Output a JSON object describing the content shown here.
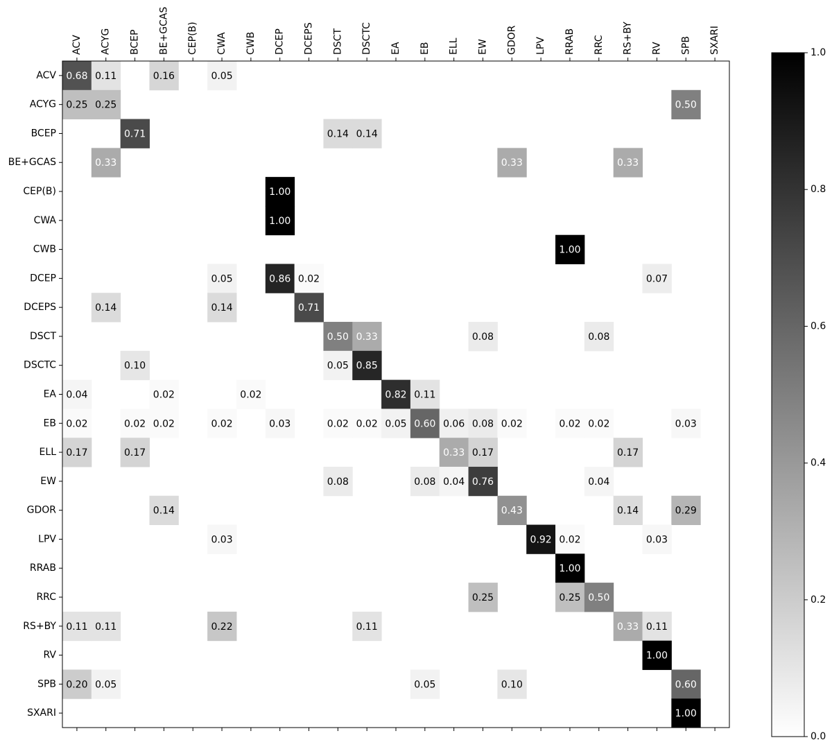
{
  "chart_data": {
    "type": "heatmap",
    "rows": [
      "ACV",
      "ACYG",
      "BCEP",
      "BE+GCAS",
      "CEP(B)",
      "CWA",
      "CWB",
      "DCEP",
      "DCEPS",
      "DSCT",
      "DSCTC",
      "EA",
      "EB",
      "ELL",
      "EW",
      "GDOR",
      "LPV",
      "RRAB",
      "RRC",
      "RS+BY",
      "RV",
      "SPB",
      "SXARI"
    ],
    "columns": [
      "ACV",
      "ACYG",
      "BCEP",
      "BE+GCAS",
      "CEP(B)",
      "CWA",
      "CWB",
      "DCEP",
      "DCEPS",
      "DSCT",
      "DSCTC",
      "EA",
      "EB",
      "ELL",
      "EW",
      "GDOR",
      "LPV",
      "RRAB",
      "RRC",
      "RS+BY",
      "RV",
      "SPB",
      "SXARI"
    ],
    "values": [
      [
        0.68,
        0.11,
        null,
        0.16,
        null,
        0.05,
        null,
        null,
        null,
        null,
        null,
        null,
        null,
        null,
        null,
        null,
        null,
        null,
        null,
        null,
        null,
        null,
        null
      ],
      [
        0.25,
        0.25,
        null,
        null,
        null,
        null,
        null,
        null,
        null,
        null,
        null,
        null,
        null,
        null,
        null,
        null,
        null,
        null,
        null,
        null,
        null,
        0.5,
        null
      ],
      [
        null,
        null,
        0.71,
        null,
        null,
        null,
        null,
        null,
        null,
        0.14,
        0.14,
        null,
        null,
        null,
        null,
        null,
        null,
        null,
        null,
        null,
        null,
        null,
        null
      ],
      [
        null,
        0.33,
        null,
        null,
        null,
        null,
        null,
        null,
        null,
        null,
        null,
        null,
        null,
        null,
        null,
        0.33,
        null,
        null,
        null,
        0.33,
        null,
        null,
        null
      ],
      [
        null,
        null,
        null,
        null,
        null,
        null,
        null,
        1,
        null,
        null,
        null,
        null,
        null,
        null,
        null,
        null,
        null,
        null,
        null,
        null,
        null,
        null,
        null
      ],
      [
        null,
        null,
        null,
        null,
        null,
        null,
        null,
        1,
        null,
        null,
        null,
        null,
        null,
        null,
        null,
        null,
        null,
        null,
        null,
        null,
        null,
        null,
        null
      ],
      [
        null,
        null,
        null,
        null,
        null,
        null,
        null,
        null,
        null,
        null,
        null,
        null,
        null,
        null,
        null,
        null,
        null,
        1,
        null,
        null,
        null,
        null,
        null
      ],
      [
        null,
        null,
        null,
        null,
        null,
        0.05,
        null,
        0.86,
        0.02,
        null,
        null,
        null,
        null,
        null,
        null,
        null,
        null,
        null,
        null,
        null,
        0.07,
        null,
        null
      ],
      [
        null,
        0.14,
        null,
        null,
        null,
        0.14,
        null,
        null,
        0.71,
        null,
        null,
        null,
        null,
        null,
        null,
        null,
        null,
        null,
        null,
        null,
        null,
        null,
        null
      ],
      [
        null,
        null,
        null,
        null,
        null,
        null,
        null,
        null,
        null,
        0.5,
        0.33,
        null,
        null,
        null,
        0.08,
        null,
        null,
        null,
        0.08,
        null,
        null,
        null,
        null
      ],
      [
        null,
        null,
        0.1,
        null,
        null,
        null,
        null,
        null,
        null,
        0.05,
        0.85,
        null,
        null,
        null,
        null,
        null,
        null,
        null,
        null,
        null,
        null,
        null,
        null
      ],
      [
        0.04,
        null,
        null,
        0.02,
        null,
        null,
        0.02,
        null,
        null,
        null,
        null,
        0.82,
        0.11,
        null,
        null,
        null,
        null,
        null,
        null,
        null,
        null,
        null,
        null
      ],
      [
        0.02,
        null,
        0.02,
        0.02,
        null,
        0.02,
        null,
        0.03,
        null,
        0.02,
        0.02,
        0.05,
        0.6,
        0.06,
        0.08,
        0.02,
        null,
        0.02,
        0.02,
        null,
        null,
        0.03,
        null
      ],
      [
        0.17,
        null,
        0.17,
        null,
        null,
        null,
        null,
        null,
        null,
        null,
        null,
        null,
        null,
        0.33,
        0.17,
        null,
        null,
        null,
        null,
        0.17,
        null,
        null,
        null
      ],
      [
        null,
        null,
        null,
        null,
        null,
        null,
        null,
        null,
        null,
        0.08,
        null,
        null,
        0.08,
        0.04,
        0.76,
        null,
        null,
        null,
        0.04,
        null,
        null,
        null,
        null
      ],
      [
        null,
        null,
        null,
        0.14,
        null,
        null,
        null,
        null,
        null,
        null,
        null,
        null,
        null,
        null,
        null,
        0.43,
        null,
        null,
        null,
        0.14,
        null,
        0.29,
        null
      ],
      [
        null,
        null,
        null,
        null,
        null,
        0.03,
        null,
        null,
        null,
        null,
        null,
        null,
        null,
        null,
        null,
        null,
        0.92,
        0.02,
        null,
        null,
        0.03,
        null,
        null
      ],
      [
        null,
        null,
        null,
        null,
        null,
        null,
        null,
        null,
        null,
        null,
        null,
        null,
        null,
        null,
        null,
        null,
        null,
        1,
        null,
        null,
        null,
        null,
        null
      ],
      [
        null,
        null,
        null,
        null,
        null,
        null,
        null,
        null,
        null,
        null,
        null,
        null,
        null,
        null,
        0.25,
        null,
        null,
        0.25,
        0.5,
        null,
        null,
        null,
        null
      ],
      [
        0.11,
        0.11,
        null,
        null,
        null,
        0.22,
        null,
        null,
        null,
        null,
        0.11,
        null,
        null,
        null,
        null,
        null,
        null,
        null,
        null,
        0.33,
        0.11,
        null,
        null
      ],
      [
        null,
        null,
        null,
        null,
        null,
        null,
        null,
        null,
        null,
        null,
        null,
        null,
        null,
        null,
        null,
        null,
        null,
        null,
        null,
        null,
        1,
        null,
        null
      ],
      [
        0.2,
        0.05,
        null,
        null,
        null,
        null,
        null,
        null,
        null,
        null,
        null,
        null,
        0.05,
        null,
        null,
        0.1,
        null,
        null,
        null,
        null,
        null,
        0.6,
        null
      ],
      [
        null,
        null,
        null,
        null,
        null,
        null,
        null,
        null,
        null,
        null,
        null,
        null,
        null,
        null,
        null,
        null,
        null,
        null,
        null,
        null,
        null,
        1,
        null
      ]
    ],
    "value_labels": [
      [
        "0.68",
        "0.11",
        null,
        "0.16",
        null,
        "0.05",
        null,
        null,
        null,
        null,
        null,
        null,
        null,
        null,
        null,
        null,
        null,
        null,
        null,
        null,
        null,
        null,
        null
      ],
      [
        "0.25",
        "0.25",
        null,
        null,
        null,
        null,
        null,
        null,
        null,
        null,
        null,
        null,
        null,
        null,
        null,
        null,
        null,
        null,
        null,
        null,
        null,
        "0.50",
        null
      ],
      [
        null,
        null,
        "0.71",
        null,
        null,
        null,
        null,
        null,
        null,
        "0.14",
        "0.14",
        null,
        null,
        null,
        null,
        null,
        null,
        null,
        null,
        null,
        null,
        null,
        null
      ],
      [
        null,
        "0.33",
        null,
        null,
        null,
        null,
        null,
        null,
        null,
        null,
        null,
        null,
        null,
        null,
        null,
        "0.33",
        null,
        null,
        null,
        "0.33",
        null,
        null,
        null
      ],
      [
        null,
        null,
        null,
        null,
        null,
        null,
        null,
        "1.00",
        null,
        null,
        null,
        null,
        null,
        null,
        null,
        null,
        null,
        null,
        null,
        null,
        null,
        null,
        null
      ],
      [
        null,
        null,
        null,
        null,
        null,
        null,
        null,
        "1.00",
        null,
        null,
        null,
        null,
        null,
        null,
        null,
        null,
        null,
        null,
        null,
        null,
        null,
        null,
        null
      ],
      [
        null,
        null,
        null,
        null,
        null,
        null,
        null,
        null,
        null,
        null,
        null,
        null,
        null,
        null,
        null,
        null,
        null,
        "1.00",
        null,
        null,
        null,
        null,
        null
      ],
      [
        null,
        null,
        null,
        null,
        null,
        "0.05",
        null,
        "0.86",
        "0.02",
        null,
        null,
        null,
        null,
        null,
        null,
        null,
        null,
        null,
        null,
        null,
        "0.07",
        null,
        null
      ],
      [
        null,
        "0.14",
        null,
        null,
        null,
        "0.14",
        null,
        null,
        "0.71",
        null,
        null,
        null,
        null,
        null,
        null,
        null,
        null,
        null,
        null,
        null,
        null,
        null,
        null
      ],
      [
        null,
        null,
        null,
        null,
        null,
        null,
        null,
        null,
        null,
        "0.50",
        "0.33",
        null,
        null,
        null,
        "0.08",
        null,
        null,
        null,
        "0.08",
        null,
        null,
        null,
        null
      ],
      [
        null,
        null,
        "0.10",
        null,
        null,
        null,
        null,
        null,
        null,
        "0.05",
        "0.85",
        null,
        null,
        null,
        null,
        null,
        null,
        null,
        null,
        null,
        null,
        null,
        null
      ],
      [
        "0.04",
        null,
        null,
        "0.02",
        null,
        null,
        "0.02",
        null,
        null,
        null,
        null,
        "0.82",
        "0.11",
        null,
        null,
        null,
        null,
        null,
        null,
        null,
        null,
        null,
        null
      ],
      [
        "0.02",
        null,
        "0.02",
        "0.02",
        null,
        "0.02",
        null,
        "0.03",
        null,
        "0.02",
        "0.02",
        "0.05",
        "0.60",
        "0.06",
        "0.08",
        "0.02",
        null,
        "0.02",
        "0.02",
        null,
        null,
        "0.03",
        null
      ],
      [
        "0.17",
        null,
        "0.17",
        null,
        null,
        null,
        null,
        null,
        null,
        null,
        null,
        null,
        null,
        "0.33",
        "0.17",
        null,
        null,
        null,
        null,
        "0.17",
        null,
        null,
        null
      ],
      [
        null,
        null,
        null,
        null,
        null,
        null,
        null,
        null,
        null,
        "0.08",
        null,
        null,
        "0.08",
        "0.04",
        "0.76",
        null,
        null,
        null,
        "0.04",
        null,
        null,
        null,
        null
      ],
      [
        null,
        null,
        null,
        "0.14",
        null,
        null,
        null,
        null,
        null,
        null,
        null,
        null,
        null,
        null,
        null,
        "0.43",
        null,
        null,
        null,
        "0.14",
        null,
        "0.29",
        null
      ],
      [
        null,
        null,
        null,
        null,
        null,
        "0.03",
        null,
        null,
        null,
        null,
        null,
        null,
        null,
        null,
        null,
        null,
        "0.92",
        "0.02",
        null,
        null,
        "0.03",
        null,
        null
      ],
      [
        null,
        null,
        null,
        null,
        null,
        null,
        null,
        null,
        null,
        null,
        null,
        null,
        null,
        null,
        null,
        null,
        null,
        "1.00",
        null,
        null,
        null,
        null,
        null
      ],
      [
        null,
        null,
        null,
        null,
        null,
        null,
        null,
        null,
        null,
        null,
        null,
        null,
        null,
        null,
        "0.25",
        null,
        null,
        "0.25",
        "0.50",
        null,
        null,
        null,
        null
      ],
      [
        "0.11",
        "0.11",
        null,
        null,
        null,
        "0.22",
        null,
        null,
        null,
        null,
        "0.11",
        null,
        null,
        null,
        null,
        null,
        null,
        null,
        null,
        "0.33",
        "0.11",
        null,
        null
      ],
      [
        null,
        null,
        null,
        null,
        null,
        null,
        null,
        null,
        null,
        null,
        null,
        null,
        null,
        null,
        null,
        null,
        null,
        null,
        null,
        null,
        "1.00",
        null,
        null
      ],
      [
        "0.20",
        "0.05",
        null,
        null,
        null,
        null,
        null,
        null,
        null,
        null,
        null,
        null,
        "0.05",
        null,
        null,
        "0.10",
        null,
        null,
        null,
        null,
        null,
        "0.60",
        null
      ],
      [
        null,
        null,
        null,
        null,
        null,
        null,
        null,
        null,
        null,
        null,
        null,
        null,
        null,
        null,
        null,
        null,
        null,
        null,
        null,
        null,
        null,
        "1.00",
        null
      ]
    ],
    "colormap": "gray_r",
    "colorbar_lim": [
      0,
      1
    ],
    "colorbar_ticks": [
      {
        "value": 0,
        "label": "0.0"
      },
      0.2,
      0.4,
      0.6,
      0.8,
      {
        "value": 1,
        "label": "1.0"
      }
    ]
  }
}
